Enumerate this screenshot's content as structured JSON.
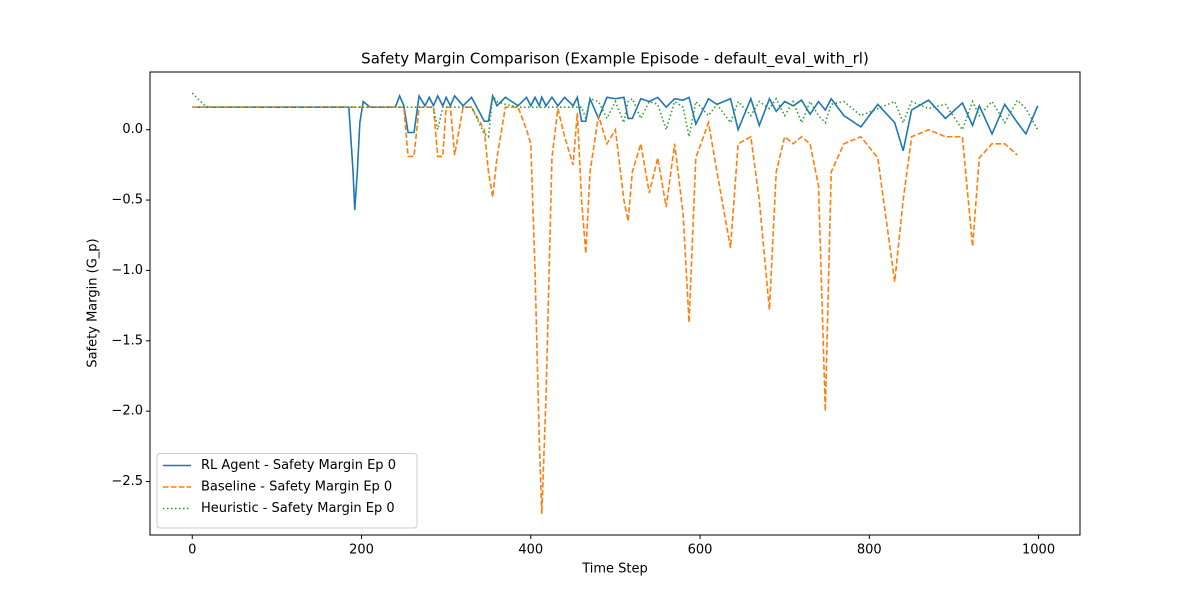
{
  "chart_data": {
    "type": "line",
    "title": "Safety Margin Comparison (Example Episode - default_eval_with_rl)",
    "x_label": "Time Step",
    "y_label": "Safety Margin (G_p)",
    "x": [
      0,
      15,
      20,
      100,
      185,
      190,
      192,
      195,
      198,
      202,
      210,
      240,
      245,
      250,
      255,
      262,
      268,
      275,
      280,
      285,
      290,
      296,
      300,
      305,
      310,
      320,
      330,
      345,
      350,
      355,
      360,
      370,
      385,
      395,
      400,
      405,
      410,
      413,
      418,
      425,
      432,
      440,
      450,
      455,
      460,
      465,
      470,
      480,
      490,
      500,
      510,
      515,
      520,
      530,
      540,
      550,
      560,
      570,
      580,
      587,
      595,
      610,
      620,
      636,
      645,
      660,
      670,
      682,
      690,
      700,
      710,
      720,
      730,
      740,
      748,
      755,
      770,
      790,
      810,
      830,
      840,
      850,
      870,
      890,
      910,
      922,
      930,
      945,
      960,
      975,
      985,
      999
    ],
    "series": [
      {
        "name": "RL Agent - Safety Margin Ep 0",
        "color": "#1f77b4",
        "linestyle": "solid",
        "values": [
          0.16,
          0.16,
          0.16,
          0.16,
          0.16,
          -0.3,
          -0.57,
          -0.3,
          0.05,
          0.2,
          0.16,
          0.16,
          0.24,
          0.17,
          -0.02,
          -0.02,
          0.24,
          0.17,
          0.23,
          0.17,
          0.24,
          0.17,
          0.23,
          0.17,
          0.24,
          0.17,
          0.23,
          0.06,
          0.06,
          0.24,
          0.17,
          0.23,
          0.17,
          0.23,
          0.17,
          0.23,
          0.17,
          0.23,
          0.17,
          0.23,
          0.17,
          0.23,
          0.17,
          0.23,
          0.06,
          0.06,
          0.22,
          0.08,
          0.23,
          0.22,
          0.23,
          0.08,
          0.08,
          0.22,
          0.2,
          0.23,
          0.16,
          0.22,
          0.21,
          0.23,
          0.04,
          0.22,
          0.18,
          0.22,
          0.0,
          0.22,
          0.03,
          0.22,
          0.13,
          0.2,
          0.17,
          0.21,
          0.11,
          0.2,
          0.14,
          0.22,
          0.1,
          0.02,
          0.18,
          0.05,
          -0.15,
          0.14,
          0.21,
          0.08,
          0.19,
          0.03,
          0.17,
          -0.03,
          0.18,
          0.05,
          -0.03,
          0.17
        ]
      },
      {
        "name": "Baseline - Safety Margin Ep 0",
        "color": "#ff7f0e",
        "linestyle": "dashed",
        "values": [
          0.16,
          0.16,
          0.16,
          0.16,
          0.16,
          0.16,
          0.16,
          0.16,
          0.16,
          0.16,
          0.16,
          0.16,
          0.16,
          0.16,
          -0.19,
          -0.19,
          0.16,
          0.16,
          0.16,
          0.16,
          -0.19,
          -0.19,
          0.16,
          0.16,
          -0.18,
          0.16,
          0.16,
          0.0,
          -0.3,
          -0.48,
          -0.2,
          0.16,
          0.16,
          0.0,
          -0.1,
          -1.0,
          -2.2,
          -2.73,
          -1.9,
          -0.2,
          0.15,
          -0.05,
          -0.25,
          0.12,
          -0.5,
          -0.88,
          -0.3,
          0.1,
          -0.1,
          0.0,
          -0.5,
          -0.65,
          -0.3,
          -0.1,
          -0.45,
          -0.2,
          -0.55,
          -0.1,
          -0.6,
          -1.37,
          -0.2,
          0.05,
          -0.3,
          -0.84,
          -0.1,
          -0.05,
          -0.5,
          -1.28,
          -0.3,
          -0.05,
          -0.1,
          -0.05,
          -0.1,
          -0.4,
          -2.0,
          -0.3,
          -0.1,
          -0.05,
          -0.2,
          -1.08,
          -0.5,
          -0.05,
          0.0,
          -0.05,
          -0.05,
          -0.83,
          -0.2,
          -0.1,
          -0.1,
          -0.18,
          null,
          null
        ]
      },
      {
        "name": "Heuristic - Safety Margin Ep 0",
        "color": "#2ca02c",
        "linestyle": "dotted",
        "values": [
          0.26,
          0.17,
          0.16,
          0.16,
          0.16,
          0.16,
          0.16,
          0.16,
          0.16,
          0.16,
          0.16,
          0.16,
          0.16,
          0.16,
          0.16,
          0.16,
          0.16,
          0.16,
          0.16,
          0.16,
          0.0,
          0.16,
          0.16,
          0.16,
          0.16,
          0.16,
          0.16,
          -0.03,
          -0.05,
          0.24,
          0.2,
          0.18,
          0.16,
          0.16,
          0.16,
          0.16,
          0.16,
          0.16,
          0.16,
          0.16,
          0.16,
          0.16,
          0.16,
          0.16,
          0.16,
          0.08,
          0.22,
          0.2,
          0.08,
          0.2,
          0.05,
          0.2,
          0.22,
          0.08,
          0.2,
          0.18,
          0.0,
          0.2,
          0.16,
          -0.05,
          0.2,
          0.1,
          0.18,
          0.05,
          0.2,
          0.1,
          0.2,
          0.15,
          0.22,
          0.1,
          0.2,
          0.05,
          0.2,
          0.1,
          0.05,
          0.18,
          0.2,
          0.1,
          0.15,
          0.2,
          0.05,
          0.2,
          0.15,
          0.18,
          0.0,
          0.2,
          0.1,
          0.2,
          0.05,
          0.21,
          0.15,
          0.0
        ]
      }
    ],
    "xlim": [
      -49.95,
      1048.95
    ],
    "ylim": [
      -2.88,
      0.41
    ],
    "xticks": [
      0,
      200,
      400,
      600,
      800,
      1000
    ],
    "yticks": [
      {
        "value": -2.5,
        "label": "−2.5"
      },
      {
        "value": -2.0,
        "label": "−2.0"
      },
      {
        "value": -1.5,
        "label": "−1.5"
      },
      {
        "value": -1.0,
        "label": "−1.0"
      },
      {
        "value": -0.5,
        "label": "−0.5"
      },
      {
        "value": 0,
        "label": "0.0"
      }
    ],
    "grid": false,
    "legend": "lower left"
  }
}
